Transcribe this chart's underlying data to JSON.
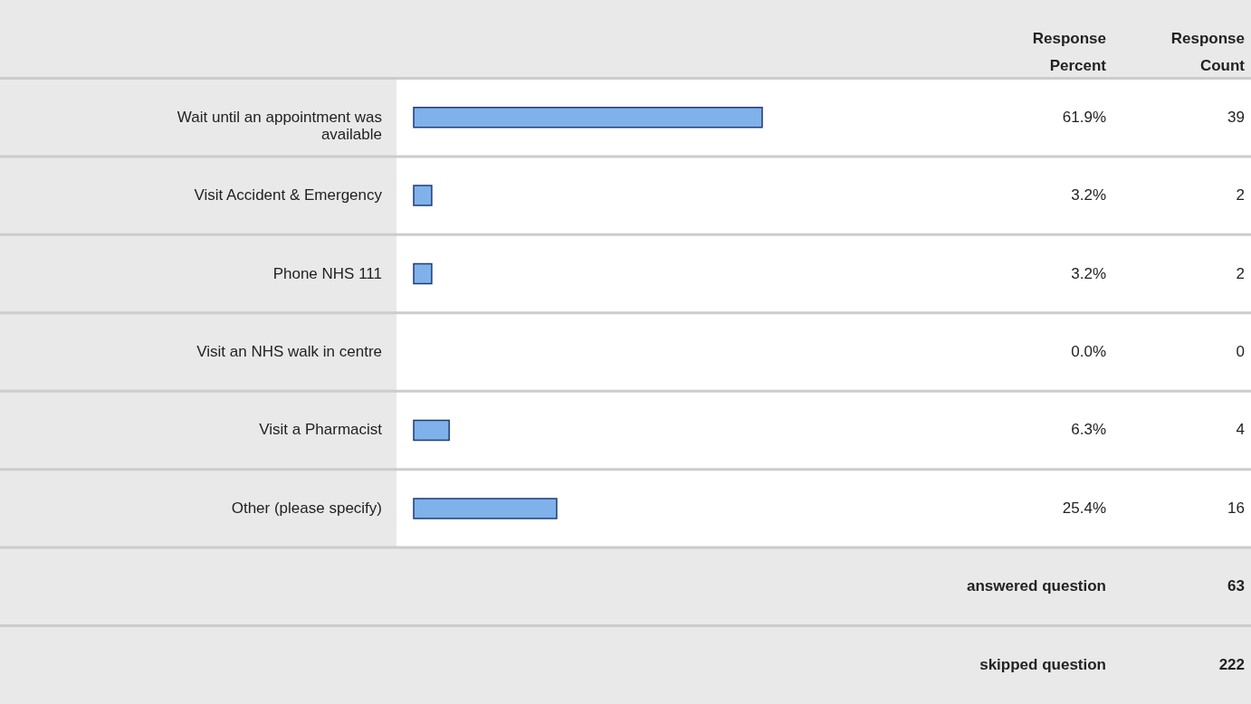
{
  "chart_data": {
    "type": "bar",
    "orientation": "horizontal",
    "categories": [
      "Wait until an appointment was available",
      "Visit Accident & Emergency",
      "Phone NHS 111",
      "Visit an NHS walk in centre",
      "Visit a Pharmacist",
      "Other (please specify)"
    ],
    "values": [
      61.9,
      3.2,
      3.2,
      0.0,
      6.3,
      25.4
    ],
    "value_labels": [
      "61.9%",
      "3.2%",
      "3.2%",
      "0.0%",
      "6.3%",
      "25.4%"
    ],
    "color": "#7fb2ea",
    "annotations": [
      "Response Percent",
      "Response Count",
      "39",
      "2",
      "2",
      "0",
      "4",
      "16",
      "answered question",
      "63",
      "skipped question",
      "222"
    ]
  }
}
